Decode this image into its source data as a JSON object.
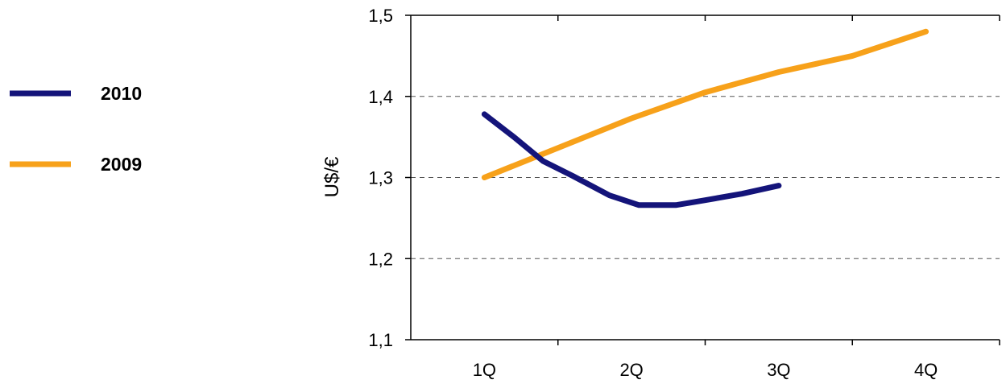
{
  "chart_data": {
    "type": "line",
    "title": "",
    "xlabel": "",
    "ylabel": "U$/€",
    "categories": [
      "1Q",
      "2Q",
      "3Q",
      "4Q"
    ],
    "ylim": [
      1.1,
      1.5
    ],
    "yticks": [
      "1,1",
      "1,2",
      "1,3",
      "1,4",
      "1,5"
    ],
    "ytick_values": [
      1.1,
      1.2,
      1.3,
      1.4,
      1.5
    ],
    "grid": "horizontal-dashed",
    "legend_position": "left",
    "series": [
      {
        "name": "2010",
        "color": "#14147a",
        "points": [
          {
            "x": 0.0,
            "y": 1.378
          },
          {
            "x": 0.2,
            "y": 1.35
          },
          {
            "x": 0.4,
            "y": 1.32
          },
          {
            "x": 0.6,
            "y": 1.302
          },
          {
            "x": 0.85,
            "y": 1.278
          },
          {
            "x": 1.05,
            "y": 1.266
          },
          {
            "x": 1.3,
            "y": 1.266
          },
          {
            "x": 1.5,
            "y": 1.272
          },
          {
            "x": 1.75,
            "y": 1.28
          },
          {
            "x": 2.0,
            "y": 1.29
          }
        ]
      },
      {
        "name": "2009",
        "color": "#f7a11a",
        "points": [
          {
            "x": 0.0,
            "y": 1.3
          },
          {
            "x": 1.0,
            "y": 1.373
          },
          {
            "x": 1.5,
            "y": 1.405
          },
          {
            "x": 2.0,
            "y": 1.43
          },
          {
            "x": 2.5,
            "y": 1.45
          },
          {
            "x": 3.0,
            "y": 1.48
          }
        ]
      }
    ]
  },
  "legend": {
    "items": [
      {
        "label": "2010",
        "color": "#14147a"
      },
      {
        "label": "2009",
        "color": "#f7a11a"
      }
    ]
  }
}
